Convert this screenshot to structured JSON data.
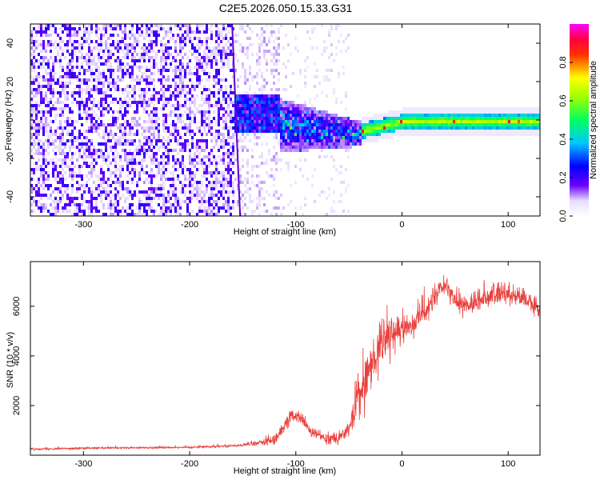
{
  "figure": {
    "title": "C2E5.2026.050.15.33.G31"
  },
  "chart_data": [
    {
      "type": "heatmap",
      "xlabel": "Height of straight line (km)",
      "ylabel": "Frequency (Hz)",
      "xlim": [
        -350,
        130
      ],
      "ylim": [
        -50,
        50
      ],
      "x_ticks": [
        -300,
        -200,
        -100,
        0,
        100
      ],
      "y_ticks": [
        -40,
        -20,
        0,
        20,
        40
      ],
      "colorbar": {
        "label": "Normalized spectral amplitude",
        "range": [
          0.0,
          1.0
        ],
        "ticks": [
          0.0,
          0.2,
          0.4,
          0.6,
          0.8
        ],
        "tick_labels": [
          "0.0",
          "0.2",
          "0.4",
          "0.6",
          "0.8"
        ],
        "colormap": [
          "#ffffff",
          "#5a00ff",
          "#0000ff",
          "#00ffff",
          "#00ff00",
          "#ffff00",
          "#ff0000",
          "#ff00ff"
        ]
      },
      "description_regions": [
        {
          "x_range": [
            -350,
            -160
          ],
          "y_range": [
            -50,
            50
          ],
          "amplitude": 0.02,
          "pattern": "broadband noise"
        },
        {
          "x_range": [
            -160,
            -40
          ],
          "y_center": 0,
          "spread_hz": [
            14,
            6
          ],
          "amplitude": 0.3
        },
        {
          "x_range": [
            -40,
            130
          ],
          "y_center": 0,
          "spread_hz": 2,
          "amplitude": 0.7
        }
      ]
    },
    {
      "type": "line",
      "xlabel": "Height of straight line (km)",
      "ylabel": "SNR (10 * v/v)",
      "xlim": [
        -350,
        130
      ],
      "ylim": [
        0,
        7800
      ],
      "x_ticks": [
        -300,
        -200,
        -100,
        0,
        100
      ],
      "y_ticks": [
        2000,
        4000,
        6000
      ],
      "series": [
        {
          "color": "#e8403c",
          "envelope_points": [
            [
              -350,
              250
            ],
            [
              -300,
              280
            ],
            [
              -250,
              300
            ],
            [
              -200,
              320
            ],
            [
              -150,
              400
            ],
            [
              -120,
              600
            ],
            [
              -105,
              1600
            ],
            [
              -95,
              1500
            ],
            [
              -85,
              900
            ],
            [
              -70,
              700
            ],
            [
              -60,
              700
            ],
            [
              -50,
              1000
            ],
            [
              -40,
              2500
            ],
            [
              -30,
              3500
            ],
            [
              -20,
              4500
            ],
            [
              -10,
              4800
            ],
            [
              0,
              5000
            ],
            [
              10,
              5300
            ],
            [
              20,
              5800
            ],
            [
              30,
              6300
            ],
            [
              40,
              6800
            ],
            [
              50,
              6200
            ],
            [
              60,
              6000
            ],
            [
              70,
              6200
            ],
            [
              80,
              6400
            ],
            [
              90,
              6500
            ],
            [
              100,
              6500
            ],
            [
              110,
              6400
            ],
            [
              120,
              6200
            ],
            [
              130,
              5800
            ]
          ],
          "noise_amplitude": [
            [
              -350,
              60
            ],
            [
              -150,
              80
            ],
            [
              -110,
              500
            ],
            [
              -80,
              300
            ],
            [
              -50,
              500
            ],
            [
              -40,
              1800
            ],
            [
              -20,
              1500
            ],
            [
              0,
              900
            ],
            [
              20,
              900
            ],
            [
              50,
              800
            ],
            [
              130,
              600
            ]
          ]
        }
      ]
    }
  ]
}
